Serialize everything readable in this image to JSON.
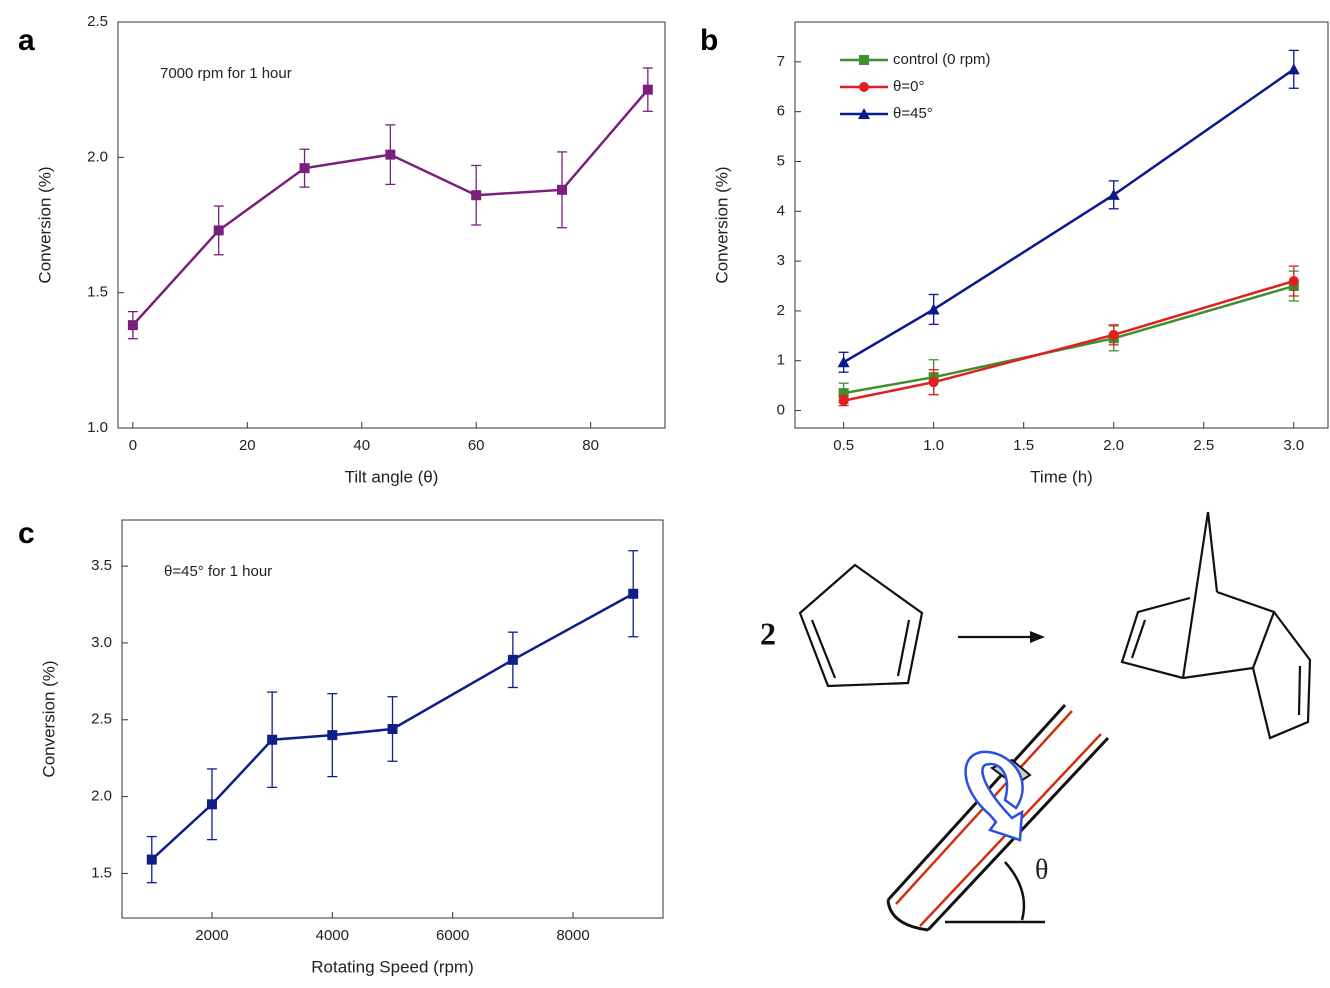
{
  "chart_data": [
    {
      "type": "line",
      "panel": "a",
      "annotation": "7000 rpm for 1 hour",
      "x_label": "Tilt angle (θ)",
      "y_label": "Conversion (%)",
      "x": [
        0,
        15,
        30,
        45,
        60,
        75,
        90
      ],
      "values": [
        1.38,
        1.73,
        1.96,
        2.01,
        1.86,
        1.88,
        2.25
      ],
      "errors": [
        0.05,
        0.09,
        0.07,
        0.11,
        0.11,
        0.14,
        0.08
      ],
      "color": "#7b1f7e",
      "marker": "square",
      "xlim": [
        -2.6,
        93
      ],
      "xticks": [
        0,
        20,
        40,
        60,
        80
      ],
      "ylim": [
        1.0,
        2.5
      ],
      "yticks": [
        {
          "value": 1.0,
          "label": "1.0"
        },
        1.5,
        {
          "value": 2.0,
          "label": "2.0"
        },
        2.5
      ]
    },
    {
      "type": "line",
      "panel": "b",
      "x_label": "Time (h)",
      "y_label": "Conversion (%)",
      "legend": "top-left",
      "x": [
        0.5,
        1.0,
        2.0,
        3.0
      ],
      "series": [
        {
          "name": "control (0 rpm)",
          "color": "#3f8f2c",
          "marker": "square",
          "values": [
            0.35,
            0.67,
            1.45,
            2.5
          ],
          "errors": [
            0.2,
            0.35,
            0.25,
            0.3
          ]
        },
        {
          "name": "θ=0°",
          "color": "#e02020",
          "marker": "circle",
          "values": [
            0.2,
            0.57,
            1.52,
            2.6
          ],
          "errors": [
            0.1,
            0.25,
            0.2,
            0.3
          ]
        },
        {
          "name": "θ=45°",
          "color": "#0b1a8c",
          "marker": "triangle",
          "values": [
            0.97,
            2.03,
            4.33,
            6.85
          ],
          "errors": [
            0.2,
            0.3,
            0.28,
            0.38
          ]
        }
      ],
      "xlim": [
        0.23,
        3.19
      ],
      "xticks": [
        0.5,
        {
          "value": 1.0,
          "label": "1.0"
        },
        1.5,
        {
          "value": 2.0,
          "label": "2.0"
        },
        2.5,
        {
          "value": 3.0,
          "label": "3.0"
        }
      ],
      "ylim": [
        -0.35,
        7.8
      ],
      "yticks": [
        0,
        1,
        2,
        3,
        4,
        5,
        6,
        7
      ]
    },
    {
      "type": "line",
      "panel": "c",
      "annotation": "θ=45° for 1 hour",
      "x_label": "Rotating Speed (rpm)",
      "y_label": "Conversion (%)",
      "x": [
        1000,
        2000,
        3000,
        4000,
        5000,
        7000,
        9000
      ],
      "values": [
        1.59,
        1.95,
        2.37,
        2.4,
        2.44,
        2.89,
        3.32
      ],
      "errors": [
        0.15,
        0.23,
        0.31,
        0.27,
        0.21,
        0.18,
        0.28
      ],
      "color": "#0f1f8a",
      "marker": "square",
      "xlim": [
        505,
        9495
      ],
      "xticks": [
        2000,
        4000,
        6000,
        8000
      ],
      "ylim": [
        1.21,
        3.8
      ],
      "yticks": [
        1.5,
        {
          "value": 2.0,
          "label": "2.0"
        },
        2.5,
        {
          "value": 3.0,
          "label": "3.0"
        },
        3.5
      ]
    }
  ],
  "diagram": {
    "coefficient": "2",
    "angle_label": "θ"
  }
}
